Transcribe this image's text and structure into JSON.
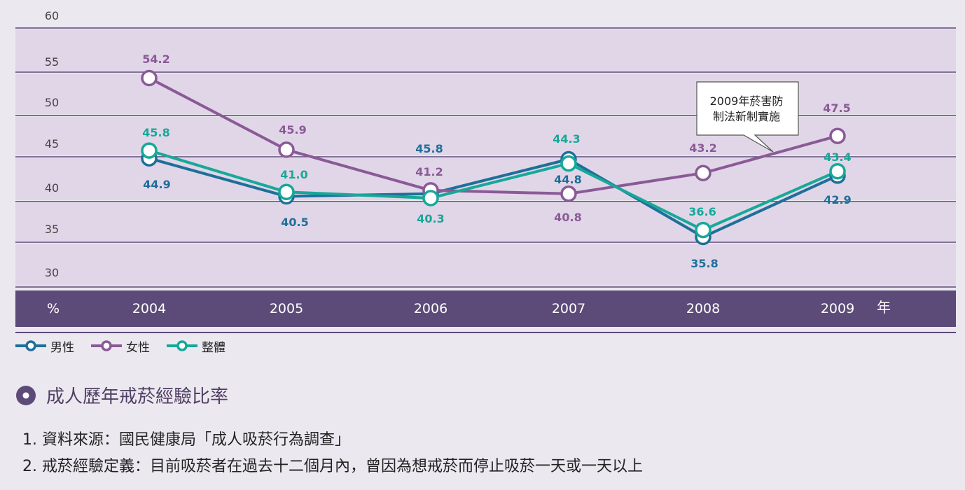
{
  "chart_data": {
    "type": "line",
    "x": [
      "2004",
      "2005",
      "2006",
      "2007",
      "2008",
      "2009"
    ],
    "x_unit": "年",
    "y_unit": "%",
    "ylim": [
      30,
      60
    ],
    "yticks": [
      "60",
      "55",
      "50",
      "45",
      "40",
      "35",
      "30"
    ],
    "series": [
      {
        "name": "男性",
        "color": "#1e6f99",
        "values": [
          44.9,
          40.5,
          40.8,
          44.8,
          35.8,
          42.9
        ],
        "labels": [
          "44.9",
          "40.5",
          "",
          "44.8",
          "35.8",
          "42.9"
        ]
      },
      {
        "name": "女性",
        "color": "#8a5a96",
        "values": [
          54.2,
          45.9,
          41.2,
          40.8,
          43.2,
          47.5
        ],
        "labels": [
          "54.2",
          "45.9",
          "41.2",
          "40.8",
          "43.2",
          "47.5"
        ]
      },
      {
        "name": "整體",
        "color": "#17a898",
        "values": [
          45.8,
          41.0,
          40.3,
          44.3,
          36.6,
          43.4
        ],
        "labels": [
          "45.8",
          "41.0",
          "40.3",
          "44.3",
          "36.6",
          "43.4"
        ]
      }
    ],
    "extra_labels": [
      {
        "text": "45.8",
        "color": "#1e6f99"
      }
    ],
    "annotation": {
      "line1": "2009年菸害防",
      "line2": "制法新制實施"
    },
    "grid": true,
    "legend_position": "bottom-left",
    "title": "成人歷年戒菸經驗比率"
  },
  "notes": [
    "1. 資料來源：國民健康局「成人吸菸行為調查」",
    "2. 戒菸經驗定義：目前吸菸者在過去十二個月內，曾因為想戒菸而停止吸菸一天或一天以上"
  ]
}
